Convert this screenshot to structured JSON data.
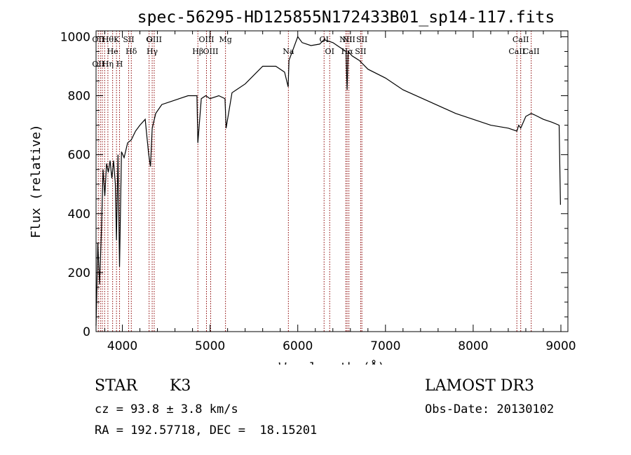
{
  "chart_data": {
    "type": "line",
    "title": "spec-56295-HD125855N172433B01_sp14-117.fits",
    "xlabel": "Wavelength (Å)",
    "ylabel": "Flux (relative)",
    "xlim": [
      3700,
      9080
    ],
    "ylim": [
      0,
      1020
    ],
    "xticks": [
      4000,
      5000,
      6000,
      7000,
      8000,
      9000
    ],
    "yticks": [
      0,
      200,
      400,
      600,
      800,
      1000
    ],
    "grid": false,
    "series": [
      {
        "color": "#000000",
        "x": [
          3700,
          3720,
          3740,
          3760,
          3780,
          3800,
          3820,
          3840,
          3860,
          3880,
          3900,
          3920,
          3933,
          3950,
          3968,
          3990,
          4020,
          4060,
          4101,
          4150,
          4200,
          4260,
          4300,
          4320,
          4340,
          4380,
          4450,
          4550,
          4650,
          4750,
          4850,
          4861,
          4900,
          4950,
          5000,
          5100,
          5170,
          5183,
          5250,
          5400,
          5600,
          5750,
          5850,
          5890,
          5900,
          5950,
          6000,
          6050,
          6150,
          6250,
          6300,
          6350,
          6400,
          6450,
          6500,
          6550,
          6563,
          6575,
          6620,
          6700,
          6800,
          7000,
          7200,
          7500,
          7800,
          8000,
          8200,
          8400,
          8498,
          8520,
          8542,
          8600,
          8662,
          8700,
          8800,
          8900,
          8980,
          8995
        ],
        "y": [
          20,
          300,
          160,
          330,
          550,
          460,
          570,
          540,
          580,
          520,
          580,
          500,
          310,
          600,
          220,
          610,
          590,
          640,
          650,
          680,
          700,
          720,
          600,
          560,
          690,
          740,
          770,
          780,
          790,
          800,
          800,
          640,
          790,
          800,
          790,
          800,
          790,
          690,
          810,
          840,
          900,
          900,
          880,
          830,
          920,
          960,
          1000,
          980,
          970,
          975,
          990,
          985,
          980,
          970,
          960,
          950,
          820,
          950,
          935,
          920,
          890,
          860,
          820,
          780,
          740,
          720,
          700,
          690,
          680,
          700,
          690,
          730,
          740,
          735,
          720,
          710,
          700,
          430
        ]
      }
    ],
    "lines": [
      {
        "w": 3726,
        "top": "OII",
        "bottom": "OII",
        "color": "#8b0000"
      },
      {
        "w": 3750,
        "top": "",
        "bottom": "",
        "color": "#8b0000"
      },
      {
        "w": 3771,
        "top": "",
        "bottom": "",
        "color": "#8b0000"
      },
      {
        "w": 3798,
        "top": "",
        "bottom": "",
        "color": "#8b0000"
      },
      {
        "w": 3835,
        "top": "Hθ",
        "bottom": "Hη",
        "color": "#8b0000"
      },
      {
        "w": 3889,
        "top": "He",
        "bottom": "",
        "color": "#8b0000"
      },
      {
        "w": 3933,
        "top": "K",
        "bottom": "",
        "color": "#8b0000"
      },
      {
        "w": 3968,
        "top": "",
        "bottom": "H",
        "color": "#8b0000"
      },
      {
        "w": 4072,
        "top": "SII",
        "bottom": "",
        "color": "#8b0000"
      },
      {
        "w": 4102,
        "top": "Hδ",
        "bottom": "",
        "color": "#8b0000"
      },
      {
        "w": 4305,
        "top": "G",
        "bottom": "",
        "color": "#8b0000"
      },
      {
        "w": 4340,
        "top": "Hγ",
        "bottom": "",
        "color": "#8b0000"
      },
      {
        "w": 4363,
        "top": "OIII",
        "bottom": "",
        "color": "#8b0000"
      },
      {
        "w": 4861,
        "top": "Hβ",
        "bottom": "",
        "color": "#8b0000"
      },
      {
        "w": 4959,
        "top": "OIII",
        "bottom": "",
        "color": "#8b0000"
      },
      {
        "w": 5007,
        "top": "OIII",
        "bottom": "",
        "color": "#8b0000"
      },
      {
        "w": 5176,
        "top": "Mg",
        "bottom": "",
        "color": "#8b0000"
      },
      {
        "w": 5893,
        "top": "Na",
        "bottom": "",
        "color": "#8b0000"
      },
      {
        "w": 6300,
        "top": "OI",
        "bottom": "",
        "color": "#8b0000"
      },
      {
        "w": 6364,
        "top": "OI",
        "bottom": "",
        "color": "#8b0000"
      },
      {
        "w": 6548,
        "top": "NII",
        "bottom": "",
        "color": "#8b0000"
      },
      {
        "w": 6563,
        "top": "Hα",
        "bottom": "",
        "color": "#8b0000"
      },
      {
        "w": 6583,
        "top": "NII",
        "bottom": "",
        "color": "#8b0000"
      },
      {
        "w": 6717,
        "top": "SII",
        "bottom": "",
        "color": "#8b0000"
      },
      {
        "w": 6731,
        "top": "SII",
        "bottom": "",
        "color": "#8b0000"
      },
      {
        "w": 8498,
        "top": "CaII",
        "bottom": "",
        "color": "#8b0000"
      },
      {
        "w": 8542,
        "top": "CaII",
        "bottom": "",
        "color": "#8b0000"
      },
      {
        "w": 8662,
        "top": "CaII",
        "bottom": "",
        "color": "#8b0000"
      }
    ]
  },
  "info": {
    "star_type": "STAR",
    "subclass": "K3",
    "survey": "LAMOST DR3",
    "cz": "cz = 93.8 ± 3.8 km/s",
    "obs_date": "Obs-Date: 20130102",
    "coords": "RA = 192.57718, DEC =  18.15201"
  }
}
